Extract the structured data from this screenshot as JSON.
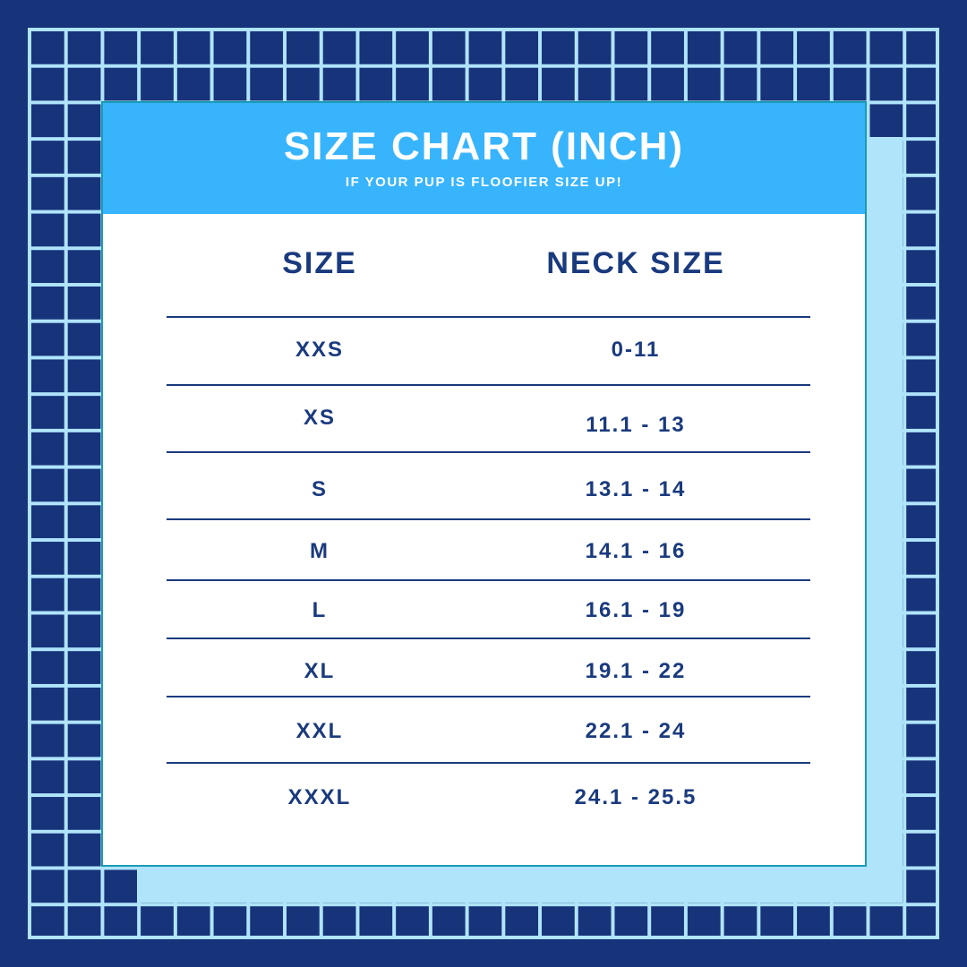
{
  "colors": {
    "background": "#17337a",
    "grid": "#b0e4fb",
    "header": "#38b4fd",
    "text": "#1a3a7e",
    "border": "#1a9bb5"
  },
  "header": {
    "title": "SIZE CHART (INCH)",
    "subtitle": "IF YOUR PUP IS FLOOFIER SIZE UP!"
  },
  "table": {
    "columns": [
      "SIZE",
      "NECK SIZE"
    ],
    "rows": [
      {
        "size": "XXS",
        "neck": "0-11"
      },
      {
        "size": "XS",
        "neck": "11.1 - 13"
      },
      {
        "size": "S",
        "neck": "13.1 - 14"
      },
      {
        "size": "M",
        "neck": "14.1 - 16"
      },
      {
        "size": "L",
        "neck": "16.1 - 19"
      },
      {
        "size": "XL",
        "neck": "19.1 - 22"
      },
      {
        "size": "XXL",
        "neck": "22.1 - 24"
      },
      {
        "size": "XXXL",
        "neck": "24.1 - 25.5"
      }
    ]
  }
}
